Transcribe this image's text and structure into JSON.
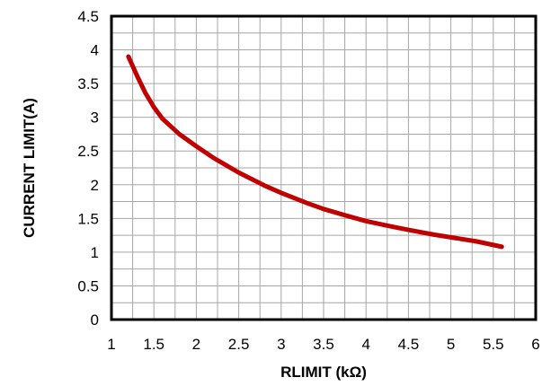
{
  "chart_data": {
    "type": "line",
    "title": "",
    "xlabel": "RLIMIT (kΩ)",
    "ylabel": "CURRENT  LIMIT(A)",
    "xlim": [
      1,
      6
    ],
    "ylim": [
      0,
      4.5
    ],
    "x_ticks": [
      "1",
      "1.5",
      "2",
      "2.5",
      "3",
      "3.5",
      "4",
      "4.5",
      "5",
      "5.5",
      "6"
    ],
    "y_ticks": [
      "0",
      "0.5",
      "1",
      "1.5",
      "2",
      "2.5",
      "3",
      "3.5",
      "4",
      "4.5"
    ],
    "grid": true,
    "legend": "none",
    "series": [
      {
        "color": "#c00000",
        "x": [
          1.2,
          1.3,
          1.4,
          1.5,
          1.6,
          1.8,
          2.0,
          2.2,
          2.5,
          2.8,
          3.0,
          3.3,
          3.5,
          3.8,
          4.0,
          4.3,
          4.5,
          4.8,
          5.0,
          5.3,
          5.6
        ],
        "y": [
          3.9,
          3.62,
          3.36,
          3.15,
          2.98,
          2.75,
          2.57,
          2.4,
          2.18,
          1.99,
          1.88,
          1.73,
          1.64,
          1.53,
          1.46,
          1.38,
          1.33,
          1.26,
          1.22,
          1.16,
          1.08
        ]
      }
    ]
  }
}
